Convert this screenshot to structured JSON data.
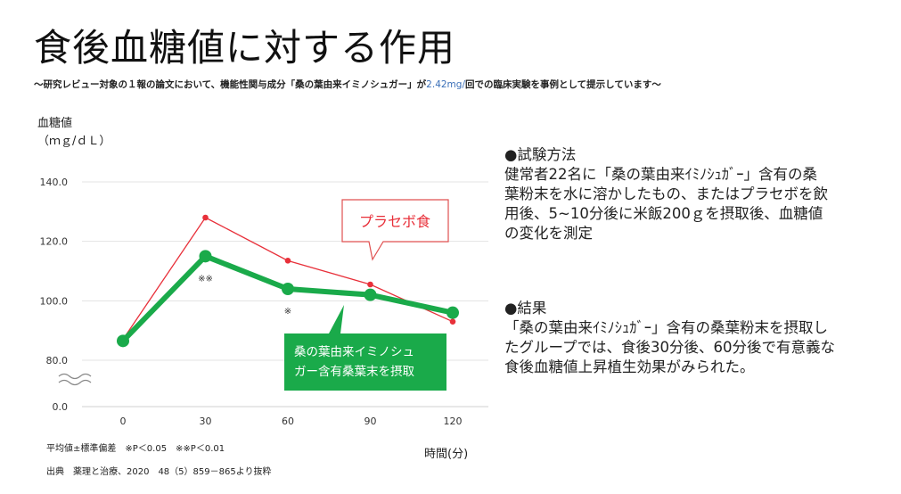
{
  "page": {
    "title": "食後血糖値に対する作用",
    "subtitle_pre": "～研究レビュー対象の１報の論文において、機能性関与成分「桑の葉由来イミノシュガー」が",
    "subtitle_hl": "2.42mg/",
    "subtitle_post": "回での臨床実験を事例として提示しています～"
  },
  "chart_data": {
    "type": "line",
    "title": "",
    "ylabel_line1": "血糖値",
    "ylabel_line2": "（ｍｇ/ｄＬ）",
    "xlabel": "時間(分)",
    "x": [
      0,
      30,
      60,
      90,
      120
    ],
    "x_tick_labels": [
      "0",
      "30",
      "60",
      "90",
      "120"
    ],
    "y_tick_labels": [
      "140.0",
      "120.0",
      "100.0",
      "80.0",
      "0.0"
    ],
    "y_break": true,
    "ylim": [
      80,
      140
    ],
    "grid": true,
    "series": [
      {
        "name": "プラセボ食",
        "values": [
          87,
          128,
          113.5,
          105.5,
          93
        ],
        "color": "#e8303a"
      },
      {
        "name": "桑の葉由来イミノシュガー含有桑葉末を摂取",
        "name_line1": "桑の葉由来イミノシュ",
        "name_line2": "ガー含有桑葉末を摂取",
        "values": [
          86.5,
          115,
          104,
          102,
          96
        ],
        "color": "#1aaa4a"
      }
    ],
    "significance_marks": [
      {
        "x": 30,
        "label": "※※"
      },
      {
        "x": 60,
        "label": "※"
      }
    ]
  },
  "notes": {
    "stats": "平均値±標準偏差　※P＜0.05　※※P＜0.01",
    "source": "出典　薬理と治療、2020　48（5）859－865より抜粋"
  },
  "method": {
    "heading": "●試験方法",
    "lines": [
      "健常者22名に「桑の葉由来ｲﾐﾉｼｭｶﾞｰ」含有の桑",
      "葉粉末を水に溶かしたもの、またはプラセボを飲",
      "用後、5~10分後に米飯200ｇを摂取後、血糖値",
      "の変化を測定"
    ]
  },
  "result": {
    "heading": "●結果",
    "lines": [
      "「桑の葉由来ｲﾐﾉｼｭｶﾞｰ」含有の桑葉粉末を摂取し",
      "たグループでは、食後30分後、60分後で有意義な",
      "食後血糖値上昇植生効果がみられた。"
    ]
  }
}
